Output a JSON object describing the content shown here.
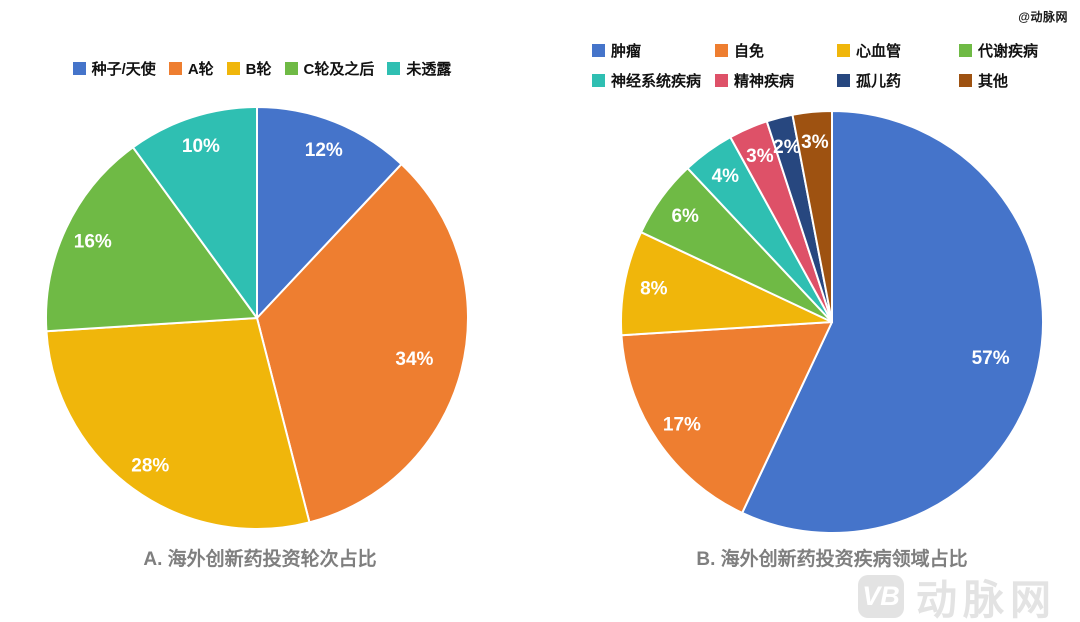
{
  "watermarks": {
    "top_right": "@动脉网",
    "logo_badge": "VB",
    "logo_text": "动脉网"
  },
  "chart_data": [
    {
      "type": "pie",
      "title": "A. 海外创新药投资轮次占比",
      "legend_position": "top",
      "start_angle": "12-o-clock",
      "direction": "clockwise",
      "categories": [
        "种子/天使",
        "A轮",
        "B轮",
        "C轮及之后",
        "未透露"
      ],
      "values": [
        12,
        34,
        28,
        16,
        10
      ],
      "labels": [
        "12%",
        "34%",
        "28%",
        "16%",
        "10%"
      ],
      "colors": [
        "#4574CA",
        "#EE7E30",
        "#F0B60B",
        "#6FBA45",
        "#2FBFB2"
      ]
    },
    {
      "type": "pie",
      "title": "B. 海外创新药投资疾病领域占比",
      "legend_position": "top",
      "start_angle": "12-o-clock",
      "direction": "clockwise",
      "categories": [
        "肿瘤",
        "自免",
        "心血管",
        "代谢疾病",
        "神经系统疾病",
        "精神疾病",
        "孤儿药",
        "其他"
      ],
      "values": [
        57,
        17,
        8,
        6,
        4,
        3,
        2,
        3
      ],
      "labels": [
        "57%",
        "17%",
        "8%",
        "6%",
        "4%",
        "3%",
        "2%",
        "3%"
      ],
      "colors": [
        "#4574CA",
        "#EE7E30",
        "#F0B60B",
        "#6FBA45",
        "#2FBFB2",
        "#DE5168",
        "#27477F",
        "#9E5211"
      ]
    }
  ]
}
